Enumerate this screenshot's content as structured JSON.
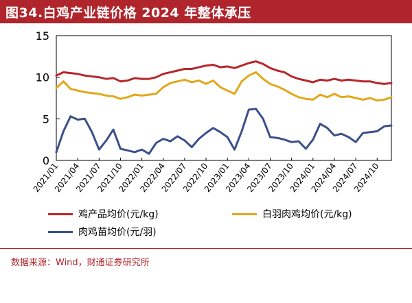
{
  "title": "图34.白鸡产业链价格 2024 年整体承压",
  "source": "数据来源：Wind，财通证券研究所",
  "colors": {
    "title_bg": "#b0252c",
    "series_product": "#b8262c",
    "series_broiler": "#e2a81c",
    "series_chick": "#3a4f8c"
  },
  "chart_data": {
    "type": "line",
    "title": "图34.白鸡产业链价格 2024 年整体承压",
    "xlabel": "",
    "ylabel": "",
    "ylim": [
      0,
      15
    ],
    "yticks": [
      0,
      5,
      10,
      15
    ],
    "xlim": [
      "2021/01",
      "2024/12"
    ],
    "x_tick_labels": [
      "2021/01",
      "2021/04",
      "2021/07",
      "2021/10",
      "2022/01",
      "2022/04",
      "2022/07",
      "2022/10",
      "2023/01",
      "2023/04",
      "2023/07",
      "2023/10",
      "2024/01",
      "2024/04",
      "2024/07",
      "2024/10"
    ],
    "grid": false,
    "legend_position": "bottom",
    "x": [
      "2021/01",
      "2021/02",
      "2021/03",
      "2021/04",
      "2021/05",
      "2021/06",
      "2021/07",
      "2021/08",
      "2021/09",
      "2021/10",
      "2021/11",
      "2021/12",
      "2022/01",
      "2022/02",
      "2022/03",
      "2022/04",
      "2022/05",
      "2022/06",
      "2022/07",
      "2022/08",
      "2022/09",
      "2022/10",
      "2022/11",
      "2022/12",
      "2023/01",
      "2023/02",
      "2023/03",
      "2023/04",
      "2023/05",
      "2023/06",
      "2023/07",
      "2023/08",
      "2023/09",
      "2023/10",
      "2023/11",
      "2023/12",
      "2024/01",
      "2024/02",
      "2024/03",
      "2024/04",
      "2024/05",
      "2024/06",
      "2024/07",
      "2024/08",
      "2024/09",
      "2024/10",
      "2024/11",
      "2024/12"
    ],
    "series": [
      {
        "name": "鸡产品均价(元/kg)",
        "color": "#b8262c",
        "values": [
          10.2,
          10.6,
          10.5,
          10.4,
          10.2,
          10.1,
          10.0,
          9.8,
          9.9,
          9.5,
          9.6,
          9.9,
          9.8,
          9.8,
          10.0,
          10.4,
          10.6,
          10.8,
          11.0,
          11.0,
          11.2,
          11.4,
          11.5,
          11.2,
          11.3,
          11.1,
          11.4,
          11.7,
          11.9,
          11.6,
          11.1,
          10.8,
          10.6,
          10.1,
          9.8,
          9.6,
          9.4,
          9.7,
          9.6,
          9.8,
          9.6,
          9.7,
          9.6,
          9.5,
          9.5,
          9.3,
          9.2,
          9.3
        ]
      },
      {
        "name": "白羽肉鸡均价(元/kg)",
        "color": "#e2a81c",
        "values": [
          8.7,
          9.5,
          8.6,
          8.4,
          8.2,
          8.1,
          8.0,
          7.8,
          7.7,
          7.4,
          7.6,
          7.9,
          7.8,
          7.9,
          8.0,
          8.8,
          9.3,
          9.5,
          9.7,
          9.4,
          9.6,
          9.2,
          9.6,
          8.8,
          8.4,
          8.0,
          9.5,
          10.2,
          10.6,
          9.8,
          9.2,
          8.9,
          8.5,
          8.0,
          7.6,
          7.4,
          7.3,
          7.9,
          7.6,
          8.0,
          7.6,
          7.7,
          7.5,
          7.3,
          7.5,
          7.2,
          7.3,
          7.6
        ]
      },
      {
        "name": "肉鸡苗均价(元/羽)",
        "color": "#3a4f8c",
        "values": [
          1.0,
          3.5,
          5.3,
          4.9,
          5.0,
          3.4,
          1.3,
          2.4,
          3.7,
          1.4,
          1.2,
          1.0,
          1.3,
          0.8,
          2.1,
          2.6,
          2.3,
          2.9,
          2.4,
          1.6,
          2.6,
          3.3,
          3.9,
          3.4,
          2.8,
          1.3,
          3.5,
          6.1,
          6.2,
          5.0,
          2.8,
          2.7,
          2.5,
          2.2,
          2.3,
          1.4,
          2.5,
          4.4,
          3.9,
          3.0,
          3.2,
          2.8,
          2.2,
          3.3,
          3.4,
          3.5,
          4.1,
          4.2
        ]
      }
    ]
  }
}
